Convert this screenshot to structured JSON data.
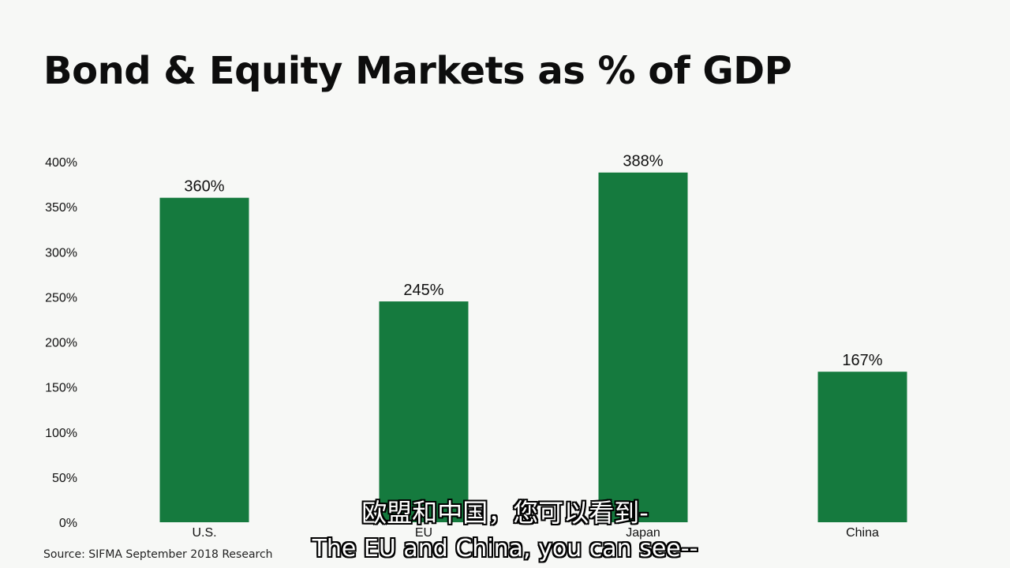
{
  "slide": {
    "title": "Bond & Equity Markets as % of GDP",
    "source": "Source: SIFMA September 2018 Research"
  },
  "subtitles": {
    "zh": "欧盟和中国，您可以看到-",
    "en": "The EU and China, you can see--"
  },
  "chart_data": {
    "type": "bar",
    "categories": [
      "U.S.",
      "EU",
      "Japan",
      "China"
    ],
    "values": [
      360,
      245,
      388,
      167
    ],
    "data_labels": [
      "360%",
      "245%",
      "388%",
      "167%"
    ],
    "ylim": [
      0,
      400
    ],
    "yticks": [
      0,
      50,
      100,
      150,
      200,
      250,
      300,
      350,
      400
    ],
    "ytick_labels": [
      "0%",
      "50%",
      "100%",
      "150%",
      "200%",
      "250%",
      "300%",
      "350%",
      "400%"
    ],
    "bar_color": "#157a3e",
    "grid": false,
    "legend": "none"
  }
}
